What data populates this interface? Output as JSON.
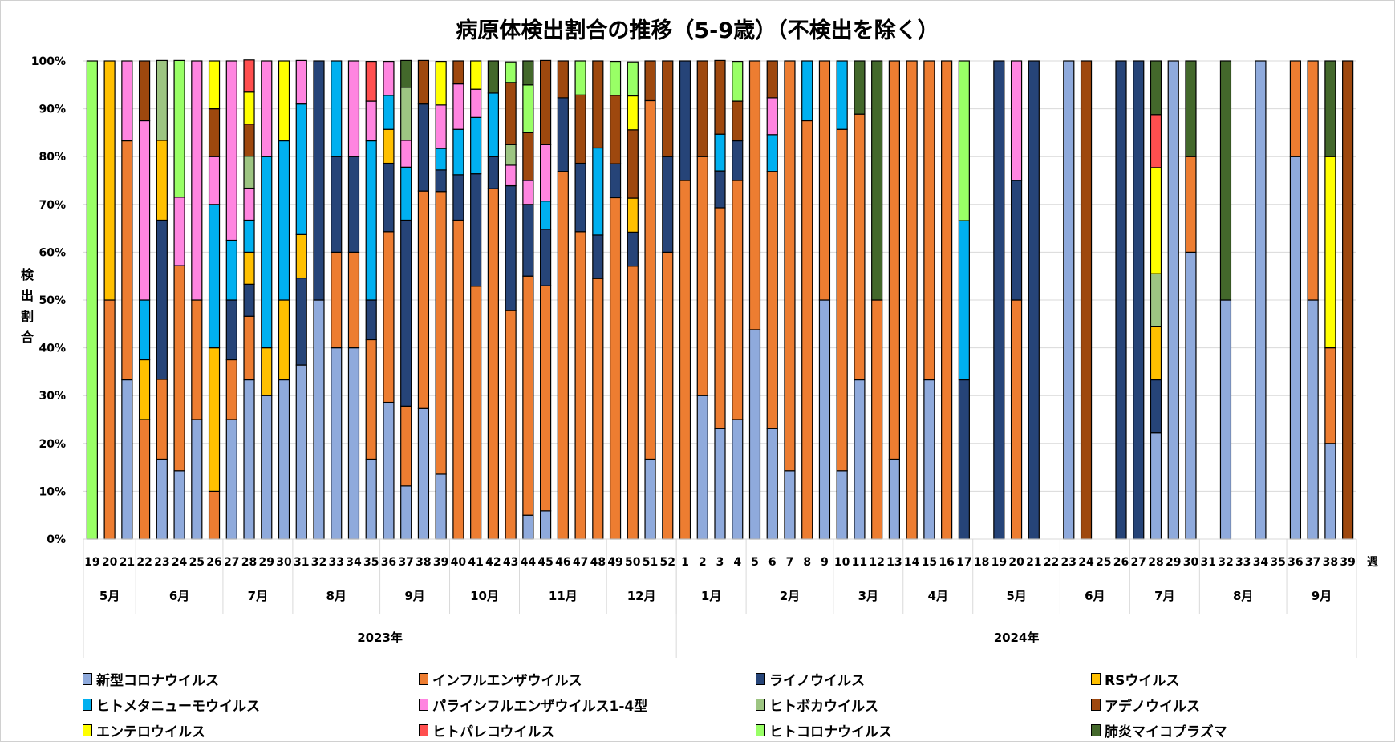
{
  "chart_data": {
    "type": "bar",
    "stacked": true,
    "normalized": true,
    "title": "病原体検出割合の推移（5-9歳）（不検出を除く）",
    "ylabel": "検出割合",
    "xlabel": "週",
    "ylim": [
      0,
      100
    ],
    "y_ticks": [
      "0%",
      "10%",
      "20%",
      "30%",
      "40%",
      "50%",
      "60%",
      "70%",
      "80%",
      "90%",
      "100%"
    ],
    "grid": true,
    "legend_position": "bottom",
    "series": [
      {
        "name": "新型コロナウイルス",
        "color": "#8FAADC"
      },
      {
        "name": "インフルエンザウイルス",
        "color": "#ED7D31"
      },
      {
        "name": "ライノウイルス",
        "color": "#264478"
      },
      {
        "name": "RSウイルス",
        "color": "#FFC000"
      },
      {
        "name": "ヒトメタニューモウイルス",
        "color": "#00B0F0"
      },
      {
        "name": "パラインフルエンザウイルス1-4型",
        "color": "#FF85E0"
      },
      {
        "name": "ヒトボカウイルス",
        "color": "#9DC582"
      },
      {
        "name": "アデノウイルス",
        "color": "#9E480E"
      },
      {
        "name": "エンテロウイルス",
        "color": "#FFFF00"
      },
      {
        "name": "ヒトパレコウイルス",
        "color": "#FF4F4F"
      },
      {
        "name": "ヒトコロナウイルス",
        "color": "#99FF66"
      },
      {
        "name": "肺炎マイコプラズマ",
        "color": "#43682B"
      }
    ],
    "years": [
      {
        "label": "2023年",
        "weeks": 34
      },
      {
        "label": "2024年",
        "weeks": 39
      }
    ],
    "months": [
      {
        "label": "5月",
        "weeks": 3
      },
      {
        "label": "6月",
        "weeks": 5
      },
      {
        "label": "7月",
        "weeks": 4
      },
      {
        "label": "8月",
        "weeks": 5
      },
      {
        "label": "9月",
        "weeks": 4
      },
      {
        "label": "10月",
        "weeks": 4
      },
      {
        "label": "11月",
        "weeks": 5
      },
      {
        "label": "12月",
        "weeks": 4
      },
      {
        "label": "1月",
        "weeks": 4
      },
      {
        "label": "2月",
        "weeks": 5
      },
      {
        "label": "3月",
        "weeks": 4
      },
      {
        "label": "4月",
        "weeks": 4
      },
      {
        "label": "5月",
        "weeks": 5
      },
      {
        "label": "6月",
        "weeks": 4
      },
      {
        "label": "7月",
        "weeks": 4
      },
      {
        "label": "8月",
        "weeks": 5
      },
      {
        "label": "9月",
        "weeks": 4
      }
    ],
    "categories": [
      "19",
      "20",
      "21",
      "22",
      "23",
      "24",
      "25",
      "26",
      "27",
      "28",
      "29",
      "30",
      "31",
      "32",
      "33",
      "34",
      "35",
      "36",
      "37",
      "38",
      "39",
      "40",
      "41",
      "42",
      "43",
      "44",
      "45",
      "46",
      "47",
      "48",
      "49",
      "50",
      "51",
      "52",
      "1",
      "2",
      "3",
      "4",
      "5",
      "6",
      "7",
      "8",
      "9",
      "10",
      "11",
      "12",
      "13",
      "14",
      "15",
      "16",
      "17",
      "18",
      "19",
      "20",
      "21",
      "22",
      "23",
      "24",
      "25",
      "26",
      "27",
      "28",
      "29",
      "30",
      "31",
      "32",
      "33",
      "34",
      "35",
      "36",
      "37",
      "38",
      "39"
    ],
    "values_by_week": [
      [
        0,
        0,
        0,
        0,
        0,
        0,
        0,
        0,
        0,
        0,
        100,
        0
      ],
      [
        0,
        50,
        0,
        50,
        0,
        0,
        0,
        0,
        0,
        0,
        0,
        0
      ],
      [
        33.3,
        50,
        0,
        0,
        0,
        16.7,
        0,
        0,
        0,
        0,
        0,
        0
      ],
      [
        0,
        25,
        0,
        12.5,
        12.5,
        37.5,
        0,
        12.5,
        0,
        0,
        0,
        0
      ],
      [
        16.7,
        16.7,
        33.3,
        16.7,
        0,
        0,
        16.7,
        0,
        0,
        0,
        0,
        0
      ],
      [
        14.3,
        42.9,
        0,
        0,
        0,
        14.3,
        0,
        0,
        0,
        0,
        28.6,
        0
      ],
      [
        25,
        25,
        0,
        0,
        0,
        50,
        0,
        0,
        0,
        0,
        0,
        0
      ],
      [
        0,
        10,
        0,
        30,
        30,
        10,
        0,
        10,
        10,
        0,
        0,
        0
      ],
      [
        25,
        12.5,
        12.5,
        0,
        12.5,
        37.5,
        0,
        0,
        0,
        0,
        0,
        0
      ],
      [
        33.3,
        13.3,
        6.7,
        6.7,
        6.7,
        6.7,
        6.7,
        6.7,
        6.7,
        6.7,
        0,
        0
      ],
      [
        30,
        0,
        0,
        10,
        40,
        20,
        0,
        0,
        0,
        0,
        0,
        0
      ],
      [
        33.3,
        0,
        0,
        16.7,
        33.3,
        0,
        0,
        0,
        16.7,
        0,
        0,
        0
      ],
      [
        36.4,
        0,
        18.2,
        9.1,
        27.3,
        9.1,
        0,
        0,
        0,
        0,
        0,
        0
      ],
      [
        50,
        0,
        50,
        0,
        0,
        0,
        0,
        0,
        0,
        0,
        0,
        0
      ],
      [
        40,
        20,
        20,
        0,
        20,
        0,
        0,
        0,
        0,
        0,
        0,
        0
      ],
      [
        40,
        20,
        20,
        0,
        0,
        20,
        0,
        0,
        0,
        0,
        0,
        0
      ],
      [
        16.7,
        25,
        8.3,
        0,
        33.3,
        8.3,
        0,
        0,
        0,
        8.3,
        0,
        0
      ],
      [
        28.6,
        35.7,
        14.3,
        7.1,
        7.1,
        7.1,
        0,
        0,
        0,
        0,
        0,
        0
      ],
      [
        11.1,
        16.7,
        38.9,
        0,
        11.1,
        5.6,
        11.1,
        0,
        0,
        0,
        0,
        5.6
      ],
      [
        27.3,
        45.5,
        18.2,
        0,
        0,
        0,
        0,
        9.1,
        0,
        0,
        0,
        0
      ],
      [
        13.6,
        59.1,
        4.5,
        0,
        4.5,
        9.1,
        0,
        0,
        9.1,
        0,
        0,
        0
      ],
      [
        0,
        66.7,
        9.5,
        0,
        9.5,
        9.5,
        0,
        4.8,
        0,
        0,
        0,
        0
      ],
      [
        0,
        52.9,
        23.5,
        0,
        11.8,
        5.9,
        0,
        0,
        5.9,
        0,
        0,
        0
      ],
      [
        0,
        73.3,
        6.7,
        0,
        13.3,
        0,
        0,
        0,
        0,
        0,
        0,
        6.7
      ],
      [
        0,
        47.8,
        26.1,
        0,
        0,
        4.3,
        4.3,
        13.0,
        0,
        0,
        4.3,
        0
      ],
      [
        5,
        50,
        15,
        0,
        0,
        5,
        0,
        10,
        0,
        0,
        10,
        5
      ],
      [
        5.9,
        47.1,
        11.8,
        0,
        5.9,
        11.8,
        0,
        17.6,
        0,
        0,
        0,
        0
      ],
      [
        0,
        76.9,
        15.4,
        0,
        0,
        0,
        0,
        7.7,
        0,
        0,
        0,
        0
      ],
      [
        0,
        64.3,
        14.3,
        0,
        0,
        0,
        0,
        14.3,
        0,
        0,
        7.1,
        0
      ],
      [
        0,
        54.5,
        9.1,
        0,
        18.2,
        0,
        0,
        18.2,
        0,
        0,
        0,
        0
      ],
      [
        0,
        71.4,
        7.1,
        0,
        0,
        0,
        0,
        14.3,
        0,
        0,
        7.1,
        0
      ],
      [
        0,
        57.1,
        7.1,
        7.1,
        0,
        0,
        0,
        14.3,
        7.1,
        0,
        7.1,
        0
      ],
      [
        16.7,
        75,
        0,
        0,
        0,
        0,
        0,
        8.3,
        0,
        0,
        0,
        0
      ],
      [
        0,
        60,
        20,
        0,
        0,
        0,
        0,
        20,
        0,
        0,
        0,
        0
      ],
      [
        0,
        75,
        25,
        0,
        0,
        0,
        0,
        0,
        0,
        0,
        0,
        0
      ],
      [
        30,
        50,
        0,
        0,
        0,
        0,
        0,
        20,
        0,
        0,
        0,
        0
      ],
      [
        23.1,
        46.2,
        7.7,
        0,
        7.7,
        0,
        0,
        15.4,
        0,
        0,
        0,
        0
      ],
      [
        25,
        50,
        8.3,
        0,
        0,
        0,
        0,
        8.3,
        0,
        0,
        8.3,
        0
      ],
      [
        43.8,
        56.2,
        0,
        0,
        0,
        0,
        0,
        0,
        0,
        0,
        0,
        0
      ],
      [
        23.1,
        53.8,
        0,
        0,
        7.7,
        7.7,
        0,
        7.7,
        0,
        0,
        0,
        0
      ],
      [
        14.3,
        85.7,
        0,
        0,
        0,
        0,
        0,
        0,
        0,
        0,
        0,
        0
      ],
      [
        0,
        87.5,
        0,
        0,
        12.5,
        0,
        0,
        0,
        0,
        0,
        0,
        0
      ],
      [
        50,
        50,
        0,
        0,
        0,
        0,
        0,
        0,
        0,
        0,
        0,
        0
      ],
      [
        14.3,
        71.4,
        0,
        0,
        14.3,
        0,
        0,
        0,
        0,
        0,
        0,
        0
      ],
      [
        33.3,
        55.6,
        0,
        0,
        0,
        0,
        0,
        0,
        0,
        0,
        0,
        11.1
      ],
      [
        0,
        50,
        0,
        0,
        0,
        0,
        0,
        0,
        0,
        0,
        0,
        50
      ],
      [
        16.7,
        83.3,
        0,
        0,
        0,
        0,
        0,
        0,
        0,
        0,
        0,
        0
      ],
      [
        0,
        100,
        0,
        0,
        0,
        0,
        0,
        0,
        0,
        0,
        0,
        0
      ],
      [
        33.3,
        66.7,
        0,
        0,
        0,
        0,
        0,
        0,
        0,
        0,
        0,
        0
      ],
      [
        0,
        100,
        0,
        0,
        0,
        0,
        0,
        0,
        0,
        0,
        0,
        0
      ],
      [
        0,
        0,
        33.3,
        0,
        33.3,
        0,
        0,
        0,
        0,
        0,
        33.4,
        0
      ],
      [
        0,
        0,
        0,
        0,
        0,
        0,
        0,
        0,
        0,
        0,
        0,
        0
      ],
      [
        0,
        0,
        100,
        0,
        0,
        0,
        0,
        0,
        0,
        0,
        0,
        0
      ],
      [
        0,
        50,
        25,
        0,
        0,
        25,
        0,
        0,
        0,
        0,
        0,
        0
      ],
      [
        0,
        0,
        100,
        0,
        0,
        0,
        0,
        0,
        0,
        0,
        0,
        0
      ],
      [
        0,
        0,
        0,
        0,
        0,
        0,
        0,
        0,
        0,
        0,
        0,
        0
      ],
      [
        100,
        0,
        0,
        0,
        0,
        0,
        0,
        0,
        0,
        0,
        0,
        0
      ],
      [
        0,
        0,
        0,
        0,
        0,
        0,
        0,
        100,
        0,
        0,
        0,
        0
      ],
      [
        0,
        0,
        0,
        0,
        0,
        0,
        0,
        0,
        0,
        0,
        0,
        0
      ],
      [
        0,
        0,
        100,
        0,
        0,
        0,
        0,
        0,
        0,
        0,
        0,
        0
      ],
      [
        0,
        0,
        100,
        0,
        0,
        0,
        0,
        0,
        0,
        0,
        0,
        0
      ],
      [
        22.2,
        0,
        11.1,
        11.1,
        0,
        0,
        11.1,
        0,
        22.2,
        11.1,
        0,
        11.2
      ],
      [
        100,
        0,
        0,
        0,
        0,
        0,
        0,
        0,
        0,
        0,
        0,
        0
      ],
      [
        60,
        20,
        0,
        0,
        0,
        0,
        0,
        0,
        0,
        0,
        0,
        20
      ],
      [
        0,
        0,
        0,
        0,
        0,
        0,
        0,
        0,
        0,
        0,
        0,
        0
      ],
      [
        50,
        0,
        0,
        0,
        0,
        0,
        0,
        0,
        0,
        0,
        0,
        50
      ],
      [
        0,
        0,
        0,
        0,
        0,
        0,
        0,
        0,
        0,
        0,
        0,
        0
      ],
      [
        100,
        0,
        0,
        0,
        0,
        0,
        0,
        0,
        0,
        0,
        0,
        0
      ],
      [
        0,
        0,
        0,
        0,
        0,
        0,
        0,
        0,
        0,
        0,
        0,
        0
      ],
      [
        80,
        20,
        0,
        0,
        0,
        0,
        0,
        0,
        0,
        0,
        0,
        0
      ],
      [
        50,
        50,
        0,
        0,
        0,
        0,
        0,
        0,
        0,
        0,
        0,
        0
      ],
      [
        20,
        20,
        0,
        0,
        0,
        0,
        0,
        0,
        40,
        0,
        0,
        20
      ],
      [
        0,
        0,
        0,
        0,
        0,
        0,
        0,
        100,
        0,
        0,
        0,
        0
      ]
    ]
  }
}
